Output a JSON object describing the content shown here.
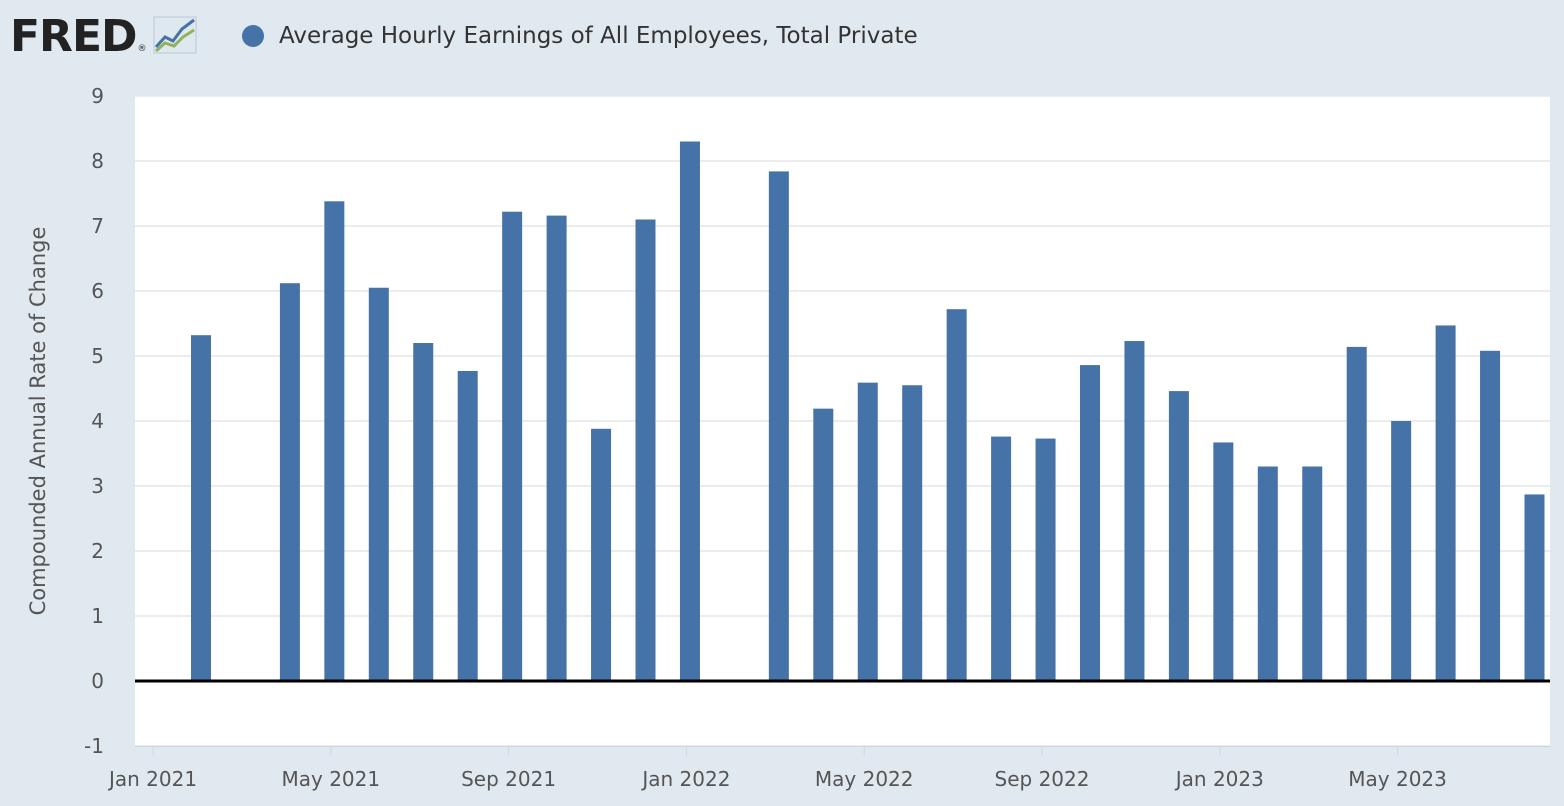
{
  "header": {
    "logo_text": "FRED",
    "logo_mark": "®",
    "logo_icon": "fred-line-chart-icon",
    "legend_label": "Average Hourly Earnings of All Employees, Total Private",
    "legend_color": "#4572a7"
  },
  "chart_data": {
    "type": "bar",
    "title": "",
    "ylabel": "Compounded Annual Rate of Change",
    "xlabel": "",
    "ylim": [
      -1,
      9
    ],
    "yticks": [
      -1,
      0,
      1,
      2,
      3,
      4,
      5,
      6,
      7,
      8,
      9
    ],
    "xtick_labels": [
      "Jan 2021",
      "May 2021",
      "Sep 2021",
      "Jan 2022",
      "May 2022",
      "Sep 2022",
      "Jan 2023",
      "May 2023"
    ],
    "grid": true,
    "colors": {
      "bar": "#4572a7",
      "plot_bg": "#ffffff",
      "page_bg": "#e1e9f0",
      "grid": "#e6e6e6",
      "zero_line": "#000000"
    },
    "series": [
      {
        "name": "Average Hourly Earnings of All Employees, Total Private",
        "points": [
          {
            "date": "2021-01",
            "value": 5.32
          },
          {
            "date": "2021-02",
            "value": null
          },
          {
            "date": "2021-03",
            "value": 6.12
          },
          {
            "date": "2021-04",
            "value": 7.38
          },
          {
            "date": "2021-05",
            "value": 6.05
          },
          {
            "date": "2021-06",
            "value": 5.2
          },
          {
            "date": "2021-07",
            "value": 4.77
          },
          {
            "date": "2021-08",
            "value": 7.22
          },
          {
            "date": "2021-09",
            "value": 7.16
          },
          {
            "date": "2021-10",
            "value": 3.88
          },
          {
            "date": "2021-11",
            "value": 7.1
          },
          {
            "date": "2021-12",
            "value": 8.3
          },
          {
            "date": "2022-01",
            "value": null
          },
          {
            "date": "2022-02",
            "value": 7.84
          },
          {
            "date": "2022-03",
            "value": 4.19
          },
          {
            "date": "2022-04",
            "value": 4.59
          },
          {
            "date": "2022-05",
            "value": 4.55
          },
          {
            "date": "2022-06",
            "value": 5.72
          },
          {
            "date": "2022-07",
            "value": 3.76
          },
          {
            "date": "2022-08",
            "value": 3.73
          },
          {
            "date": "2022-09",
            "value": 4.86
          },
          {
            "date": "2022-10",
            "value": 5.23
          },
          {
            "date": "2022-11",
            "value": 4.46
          },
          {
            "date": "2022-12",
            "value": 3.67
          },
          {
            "date": "2023-01",
            "value": 3.3
          },
          {
            "date": "2023-02",
            "value": 3.3
          },
          {
            "date": "2023-03",
            "value": 5.14
          },
          {
            "date": "2023-04",
            "value": 4.0
          },
          {
            "date": "2023-05",
            "value": 5.47
          },
          {
            "date": "2023-06",
            "value": 5.08
          },
          {
            "date": "2023-07",
            "value": 2.87
          }
        ]
      }
    ]
  }
}
